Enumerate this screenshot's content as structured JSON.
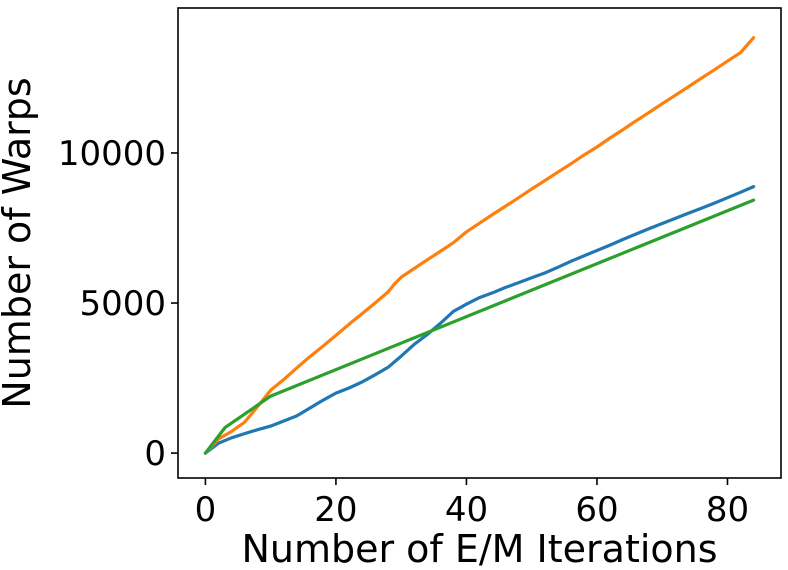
{
  "chart_data": {
    "type": "line",
    "title": "",
    "xlabel": "Number of E/M Iterations",
    "ylabel": "Number of Warps",
    "xlim": [
      -4.2,
      88.2
    ],
    "ylim": [
      -830,
      14830
    ],
    "xticks": [
      0,
      20,
      40,
      60,
      80
    ],
    "yticks": [
      0,
      5000,
      10000
    ],
    "xtick_labels": [
      "0",
      "20",
      "40",
      "60",
      "80"
    ],
    "ytick_labels": [
      "0",
      "5000",
      "10000"
    ],
    "grid": false,
    "legend": "none",
    "series": [
      {
        "color": "#1f77b4",
        "x": [
          0,
          2,
          4,
          6,
          8,
          10,
          12,
          14,
          16,
          18,
          20,
          22,
          24,
          26,
          28,
          30,
          32,
          34,
          36,
          38,
          40,
          42,
          44,
          46,
          48,
          50,
          52,
          54,
          56,
          58,
          60,
          62,
          64,
          66,
          68,
          70,
          72,
          74,
          76,
          78,
          80,
          82,
          84
        ],
        "values": [
          0,
          330,
          510,
          650,
          780,
          900,
          1070,
          1240,
          1500,
          1760,
          2000,
          2170,
          2370,
          2610,
          2860,
          3230,
          3620,
          3950,
          4320,
          4720,
          4960,
          5180,
          5340,
          5520,
          5680,
          5840,
          6000,
          6190,
          6390,
          6570,
          6750,
          6930,
          7120,
          7300,
          7480,
          7650,
          7820,
          7990,
          8160,
          8330,
          8510,
          8690,
          8880
        ]
      },
      {
        "color": "#ff7f0e",
        "x": [
          0,
          2,
          4,
          6,
          8,
          10,
          12,
          14,
          16,
          18,
          20,
          22,
          24,
          26,
          28,
          29,
          30,
          32,
          34,
          36,
          38,
          40,
          42,
          44,
          46,
          48,
          50,
          52,
          54,
          56,
          58,
          60,
          62,
          64,
          66,
          68,
          70,
          72,
          74,
          76,
          78,
          80,
          82,
          84
        ],
        "values": [
          0,
          470,
          720,
          1030,
          1550,
          2100,
          2450,
          2840,
          3210,
          3560,
          3920,
          4290,
          4640,
          5000,
          5370,
          5640,
          5860,
          6150,
          6440,
          6720,
          7010,
          7370,
          7660,
          7950,
          8230,
          8510,
          8800,
          9080,
          9360,
          9640,
          9930,
          10200,
          10500,
          10780,
          11070,
          11350,
          11640,
          11920,
          12200,
          12490,
          12770,
          13060,
          13340,
          13840
        ]
      },
      {
        "color": "#2ca02c",
        "x": [
          0,
          3,
          10,
          84
        ],
        "values": [
          0,
          850,
          1900,
          8430
        ]
      }
    ]
  }
}
